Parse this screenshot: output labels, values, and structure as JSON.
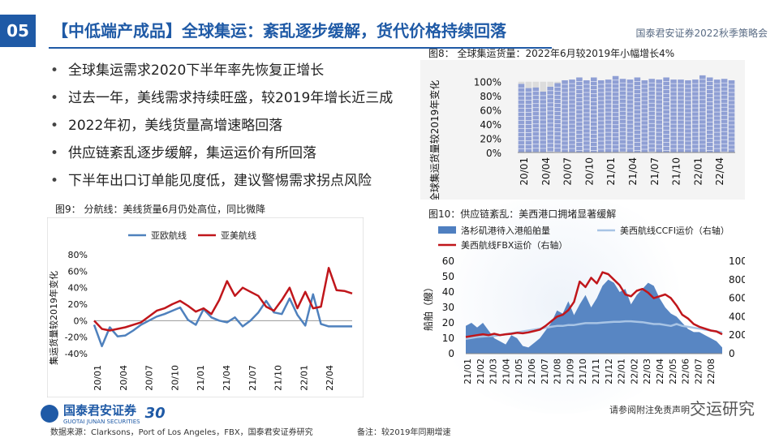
{
  "section_number": "05",
  "title": "【中低端产成品】全球集运：紊乱逐步缓解，货代价格持续回落",
  "header_right": "国泰君安证券2022秋季策略会",
  "bullets": [
    "全球集运需求2020下半年率先恢复正增长",
    "过去一年，美线需求持续旺盛，较2019年增长近三成",
    "2022年初，美线货量高增速略回落",
    "供应链紊乱逐步缓解，集运运价有所回落",
    "下半年出口订单能见度低，建议警惕需求拐点风险"
  ],
  "footer": {
    "source": "数据来源：Clarksons，Port of Los Angeles，FBX，国泰君安证券研究",
    "note": "备注：较2019年同期增速",
    "reminder": "请参阅附注免责声明",
    "watermark": "交运研究",
    "logo_cn": "国泰君安证券",
    "logo_en": "GUOTAI JUNAN SECURITIES",
    "logo_30": "30"
  },
  "chart_data": [
    {
      "id": "fig8",
      "type": "bar",
      "title": "图8：   全球集运货量：2022年6月较2019年小幅增长4%",
      "ylabel": "全球集运货量较2019年变化",
      "ylim": [
        0,
        1.1
      ],
      "yticks": [
        "0%",
        "20%",
        "40%",
        "60%",
        "80%",
        "100%"
      ],
      "xtick_labels": [
        "20/01",
        "20/04",
        "20/07",
        "20/10",
        "21/01",
        "21/04",
        "21/07",
        "21/10",
        "22/01",
        "22/04"
      ],
      "values": [
        0.97,
        0.91,
        0.92,
        0.86,
        0.93,
        0.98,
        1.02,
        1.03,
        1.06,
        1.02,
        1.06,
        1.02,
        1.03,
        1.08,
        1.04,
        1.03,
        1.06,
        1.02,
        1.04,
        1.03,
        1.06,
        1.03,
        1.03,
        1.02,
        1.03,
        1.09,
        1.06,
        1.03,
        1.04,
        1.02
      ],
      "colors": {
        "bar": "#8f9fd4",
        "top": "#dcdcdc"
      }
    },
    {
      "id": "fig9",
      "type": "line",
      "title": "图9：  分航线：美线货量6月仍处高位，同比微降",
      "ylabel": "集运货量较2019年变化",
      "ylim": [
        -40,
        80
      ],
      "yticks": [
        "-40%",
        "-20%",
        "0%",
        "20%",
        "40%",
        "60%",
        "80%"
      ],
      "xtick_labels": [
        "20/01",
        "20/04",
        "20/07",
        "20/10",
        "21/01",
        "21/04",
        "21/07",
        "21/10",
        "22/01",
        "22/04"
      ],
      "series": [
        {
          "name": "亚欧航线",
          "color": "#4f81bd",
          "values": [
            -5,
            -31,
            -8,
            -19,
            -18,
            -12,
            -5,
            0,
            5,
            8,
            12,
            16,
            1,
            -5,
            14,
            4,
            0,
            -2,
            4,
            -7,
            0,
            10,
            24,
            10,
            8,
            27,
            7,
            -6,
            32,
            -4,
            -7,
            -7,
            -7,
            -7
          ]
        },
        {
          "name": "亚美航线",
          "color": "#c0161b",
          "values": [
            0,
            -10,
            -12,
            -10,
            -8,
            -5,
            -2,
            5,
            12,
            15,
            20,
            24,
            18,
            11,
            15,
            8,
            25,
            48,
            30,
            40,
            35,
            30,
            17,
            12,
            25,
            40,
            15,
            35,
            15,
            17,
            64,
            37,
            36,
            33
          ]
        }
      ]
    },
    {
      "id": "fig10",
      "type": "area",
      "title": "图10：供应链紊乱：美西港口拥堵显著缓解",
      "ylabel_left": "船舶（艘）",
      "ylim_left": [
        0,
        60
      ],
      "ylim_right": [
        0,
        1000
      ],
      "yticks_left": [
        "0",
        "10",
        "20",
        "30",
        "40",
        "50",
        "60"
      ],
      "yticks_right": [
        "0",
        "200",
        "400",
        "600",
        "800",
        "1000"
      ],
      "xtick_labels": [
        "21/01",
        "21/02",
        "21/03",
        "21/04",
        "21/05",
        "21/06",
        "21/07",
        "21/08",
        "21/09",
        "21/10",
        "21/11",
        "21/12",
        "22/01",
        "22/02",
        "22/03",
        "22/04",
        "22/05",
        "22/06",
        "22/07",
        "22/08"
      ],
      "series": [
        {
          "name": "洛杉矶港待入港船舶量",
          "axis": "left",
          "kind": "area",
          "color": "#4f7fc0",
          "values": [
            18,
            20,
            17,
            20,
            15,
            10,
            8,
            6,
            12,
            10,
            5,
            4,
            7,
            10,
            15,
            20,
            28,
            26,
            34,
            25,
            32,
            38,
            30,
            36,
            44,
            48,
            46,
            40,
            42,
            32,
            38,
            42,
            46,
            44,
            36,
            30,
            26,
            24,
            20,
            16,
            14,
            14,
            12,
            10,
            8,
            4
          ]
        },
        {
          "name": "美西航线CCFI运价（右轴）",
          "axis": "right",
          "kind": "line",
          "color": "#a8c4e5",
          "values": [
            160,
            170,
            180,
            185,
            190,
            190,
            200,
            210,
            220,
            230,
            240,
            250,
            260,
            270,
            280,
            290,
            300,
            300,
            310,
            310,
            320,
            330,
            330,
            330,
            335,
            340,
            345,
            345,
            350,
            350,
            345,
            340,
            330,
            320,
            320,
            310,
            300,
            320,
            300,
            290,
            280,
            270,
            260,
            250,
            240,
            230
          ]
        },
        {
          "name": "美西航线FBX运价（右轴）",
          "axis": "right",
          "kind": "line",
          "color": "#c0161b",
          "values": [
            180,
            190,
            200,
            210,
            200,
            215,
            200,
            210,
            215,
            225,
            220,
            230,
            245,
            260,
            300,
            350,
            400,
            420,
            470,
            560,
            780,
            720,
            820,
            760,
            880,
            860,
            800,
            740,
            640,
            620,
            680,
            700,
            660,
            600,
            620,
            640,
            600,
            520,
            420,
            380,
            320,
            290,
            270,
            250,
            240,
            210
          ]
        }
      ]
    }
  ]
}
